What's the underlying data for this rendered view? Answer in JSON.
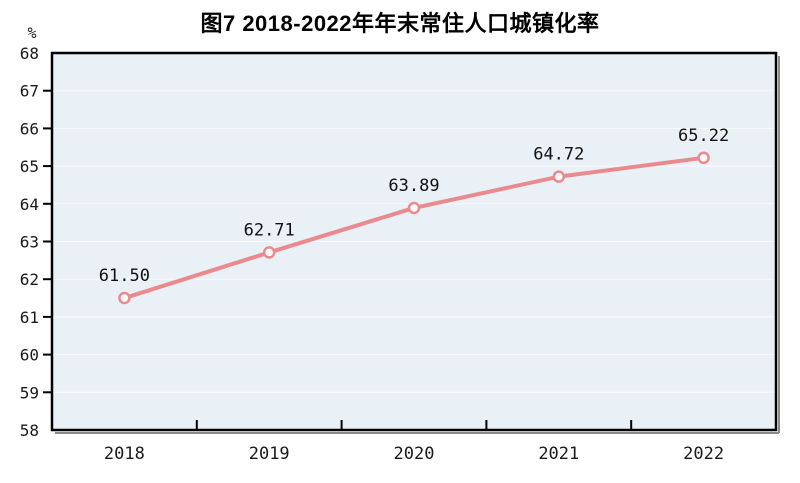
{
  "figure": {
    "title": "图7  2018-2022年年末常住人口城镇化率",
    "unit_label": "%"
  },
  "chart_data": {
    "type": "line",
    "title": "图7  2018-2022年年末常住人口城镇化率",
    "categories": [
      "2018",
      "2019",
      "2020",
      "2021",
      "2022"
    ],
    "values": [
      61.5,
      62.71,
      63.89,
      64.72,
      65.22
    ],
    "data_labels": [
      "61.50",
      "62.71",
      "63.89",
      "64.72",
      "65.22"
    ],
    "series_name": "年末常住人口城镇化率",
    "xlabel": "",
    "ylabel": "%",
    "ylim": [
      58,
      68
    ],
    "ytick_step": 1,
    "grid": true,
    "legend": "none",
    "marker": "open-circle",
    "colors": {
      "line": "#ea8a8e",
      "marker_fill": "#fdfbfb",
      "plot_background": "#e9f1f6",
      "gridline": "#ffffff",
      "axis": "#000000",
      "label_text": "#111111"
    }
  }
}
